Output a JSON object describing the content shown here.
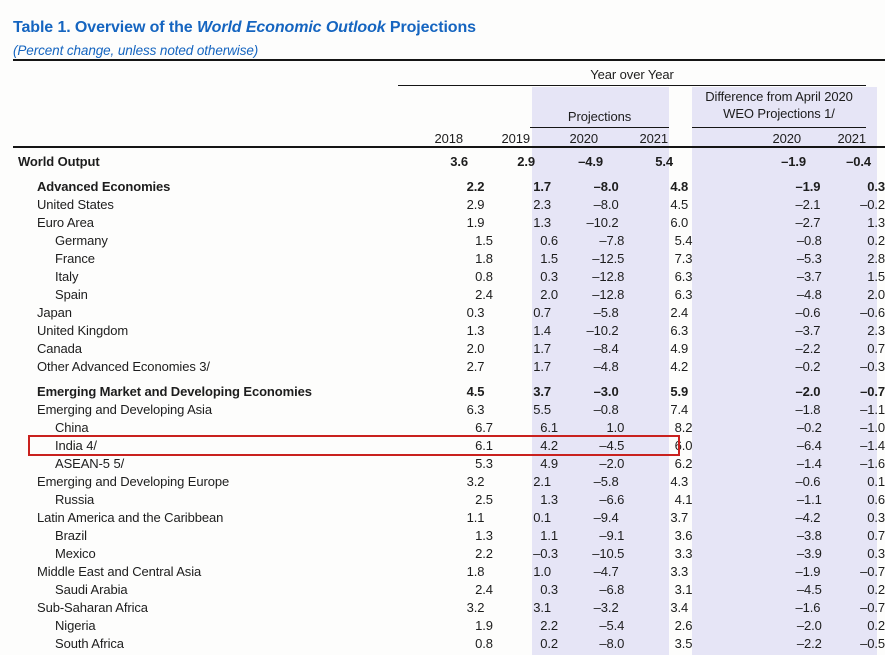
{
  "title": {
    "prefix": "Table 1. Overview of the ",
    "italic": "World Economic Outlook",
    "suffix": " Projections"
  },
  "subtitle": "(Percent change, unless noted otherwise)",
  "header": {
    "group_top": "Year over Year",
    "group_projections": "Projections",
    "group_difference_line1": "Difference from April 2020",
    "group_difference_line2": "WEO Projections 1/",
    "years": [
      "2018",
      "2019",
      "2020",
      "2021",
      "2020",
      "2021"
    ]
  },
  "colors": {
    "title_blue": "#1565c0",
    "band_lavender": "#e6e5f6",
    "highlight_red": "#c9211e",
    "text": "#1d1d1d"
  },
  "rows": [
    {
      "label": "World Output",
      "indent": 0,
      "bold": true,
      "section_gap": false,
      "highlight": false,
      "values": [
        "3.6",
        "2.9",
        "–4.9",
        "5.4",
        "–1.9",
        "–0.4"
      ]
    },
    {
      "label": "Advanced Economies",
      "indent": 1,
      "bold": true,
      "section_gap": true,
      "highlight": false,
      "values": [
        "2.2",
        "1.7",
        "–8.0",
        "4.8",
        "–1.9",
        "0.3"
      ]
    },
    {
      "label": "United States",
      "indent": 1,
      "bold": false,
      "section_gap": false,
      "highlight": false,
      "values": [
        "2.9",
        "2.3",
        "–8.0",
        "4.5",
        "–2.1",
        "–0.2"
      ]
    },
    {
      "label": "Euro Area",
      "indent": 1,
      "bold": false,
      "section_gap": false,
      "highlight": false,
      "values": [
        "1.9",
        "1.3",
        "–10.2",
        "6.0",
        "–2.7",
        "1.3"
      ]
    },
    {
      "label": "Germany",
      "indent": 2,
      "bold": false,
      "section_gap": false,
      "highlight": false,
      "values": [
        "1.5",
        "0.6",
        "–7.8",
        "5.4",
        "–0.8",
        "0.2"
      ]
    },
    {
      "label": "France",
      "indent": 2,
      "bold": false,
      "section_gap": false,
      "highlight": false,
      "values": [
        "1.8",
        "1.5",
        "–12.5",
        "7.3",
        "–5.3",
        "2.8"
      ]
    },
    {
      "label": "Italy",
      "indent": 2,
      "bold": false,
      "section_gap": false,
      "highlight": false,
      "values": [
        "0.8",
        "0.3",
        "–12.8",
        "6.3",
        "–3.7",
        "1.5"
      ]
    },
    {
      "label": "Spain",
      "indent": 2,
      "bold": false,
      "section_gap": false,
      "highlight": false,
      "values": [
        "2.4",
        "2.0",
        "–12.8",
        "6.3",
        "–4.8",
        "2.0"
      ]
    },
    {
      "label": "Japan",
      "indent": 1,
      "bold": false,
      "section_gap": false,
      "highlight": false,
      "values": [
        "0.3",
        "0.7",
        "–5.8",
        "2.4",
        "–0.6",
        "–0.6"
      ]
    },
    {
      "label": "United Kingdom",
      "indent": 1,
      "bold": false,
      "section_gap": false,
      "highlight": false,
      "values": [
        "1.3",
        "1.4",
        "–10.2",
        "6.3",
        "–3.7",
        "2.3"
      ]
    },
    {
      "label": "Canada",
      "indent": 1,
      "bold": false,
      "section_gap": false,
      "highlight": false,
      "values": [
        "2.0",
        "1.7",
        "–8.4",
        "4.9",
        "–2.2",
        "0.7"
      ]
    },
    {
      "label": "Other Advanced Economies 3/",
      "indent": 1,
      "bold": false,
      "section_gap": false,
      "highlight": false,
      "values": [
        "2.7",
        "1.7",
        "–4.8",
        "4.2",
        "–0.2",
        "–0.3"
      ]
    },
    {
      "label": "Emerging Market and Developing Economies",
      "indent": 1,
      "bold": true,
      "section_gap": true,
      "highlight": false,
      "values": [
        "4.5",
        "3.7",
        "–3.0",
        "5.9",
        "–2.0",
        "–0.7"
      ]
    },
    {
      "label": "Emerging and Developing Asia",
      "indent": 1,
      "bold": false,
      "section_gap": false,
      "highlight": false,
      "values": [
        "6.3",
        "5.5",
        "–0.8",
        "7.4",
        "–1.8",
        "–1.1"
      ]
    },
    {
      "label": "China",
      "indent": 2,
      "bold": false,
      "section_gap": false,
      "highlight": false,
      "values": [
        "6.7",
        "6.1",
        "1.0",
        "8.2",
        "–0.2",
        "–1.0"
      ]
    },
    {
      "label": "India 4/",
      "indent": 2,
      "bold": false,
      "section_gap": false,
      "highlight": true,
      "values": [
        "6.1",
        "4.2",
        "–4.5",
        "6.0",
        "–6.4",
        "–1.4"
      ]
    },
    {
      "label": "ASEAN-5 5/",
      "indent": 2,
      "bold": false,
      "section_gap": false,
      "highlight": false,
      "values": [
        "5.3",
        "4.9",
        "–2.0",
        "6.2",
        "–1.4",
        "–1.6"
      ]
    },
    {
      "label": "Emerging and Developing Europe",
      "indent": 1,
      "bold": false,
      "section_gap": false,
      "highlight": false,
      "values": [
        "3.2",
        "2.1",
        "–5.8",
        "4.3",
        "–0.6",
        "0.1"
      ]
    },
    {
      "label": "Russia",
      "indent": 2,
      "bold": false,
      "section_gap": false,
      "highlight": false,
      "values": [
        "2.5",
        "1.3",
        "–6.6",
        "4.1",
        "–1.1",
        "0.6"
      ]
    },
    {
      "label": "Latin America and the Caribbean",
      "indent": 1,
      "bold": false,
      "section_gap": false,
      "highlight": false,
      "values": [
        "1.1",
        "0.1",
        "–9.4",
        "3.7",
        "–4.2",
        "0.3"
      ]
    },
    {
      "label": "Brazil",
      "indent": 2,
      "bold": false,
      "section_gap": false,
      "highlight": false,
      "values": [
        "1.3",
        "1.1",
        "–9.1",
        "3.6",
        "–3.8",
        "0.7"
      ]
    },
    {
      "label": "Mexico",
      "indent": 2,
      "bold": false,
      "section_gap": false,
      "highlight": false,
      "values": [
        "2.2",
        "–0.3",
        "–10.5",
        "3.3",
        "–3.9",
        "0.3"
      ]
    },
    {
      "label": "Middle East and Central Asia",
      "indent": 1,
      "bold": false,
      "section_gap": false,
      "highlight": false,
      "values": [
        "1.8",
        "1.0",
        "–4.7",
        "3.3",
        "–1.9",
        "–0.7"
      ]
    },
    {
      "label": "Saudi Arabia",
      "indent": 2,
      "bold": false,
      "section_gap": false,
      "highlight": false,
      "values": [
        "2.4",
        "0.3",
        "–6.8",
        "3.1",
        "–4.5",
        "0.2"
      ]
    },
    {
      "label": "Sub-Saharan Africa",
      "indent": 1,
      "bold": false,
      "section_gap": false,
      "highlight": false,
      "values": [
        "3.2",
        "3.1",
        "–3.2",
        "3.4",
        "–1.6",
        "–0.7"
      ]
    },
    {
      "label": "Nigeria",
      "indent": 2,
      "bold": false,
      "section_gap": false,
      "highlight": false,
      "values": [
        "1.9",
        "2.2",
        "–5.4",
        "2.6",
        "–2.0",
        "0.2"
      ]
    },
    {
      "label": "South Africa",
      "indent": 2,
      "bold": false,
      "section_gap": false,
      "highlight": false,
      "values": [
        "0.8",
        "0.2",
        "–8.0",
        "3.5",
        "–2.2",
        "–0.5"
      ]
    }
  ]
}
